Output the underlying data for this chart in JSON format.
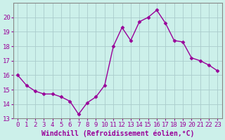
{
  "hours": [
    0,
    1,
    2,
    3,
    4,
    5,
    6,
    7,
    8,
    9,
    10,
    11,
    12,
    13,
    14,
    15,
    16,
    17,
    18,
    19,
    20,
    21,
    22,
    23
  ],
  "values": [
    16.0,
    15.3,
    14.9,
    14.7,
    14.7,
    14.5,
    14.2,
    13.3,
    14.1,
    14.5,
    15.3,
    18.0,
    19.3,
    18.4,
    19.7,
    20.0,
    20.5,
    19.6,
    18.4,
    18.3,
    17.2,
    17.0,
    16.7,
    16.3
  ],
  "line_color": "#990099",
  "marker": "D",
  "markersize": 2.5,
  "linewidth": 1.0,
  "bg_color": "#ccf0ea",
  "grid_color": "#aacccc",
  "xlabel": "Windchill (Refroidissement éolien,°C)",
  "ylim": [
    13,
    21
  ],
  "xlim_min": -0.5,
  "xlim_max": 23.5,
  "yticks": [
    13,
    14,
    15,
    16,
    17,
    18,
    19,
    20
  ],
  "xticks": [
    0,
    1,
    2,
    3,
    4,
    5,
    6,
    7,
    8,
    9,
    10,
    11,
    12,
    13,
    14,
    15,
    16,
    17,
    18,
    19,
    20,
    21,
    22,
    23
  ],
  "tick_labelsize": 6.5,
  "xlabel_fontsize": 7.0,
  "tick_color": "#990099",
  "label_color": "#990099",
  "spine_color": "#888888"
}
